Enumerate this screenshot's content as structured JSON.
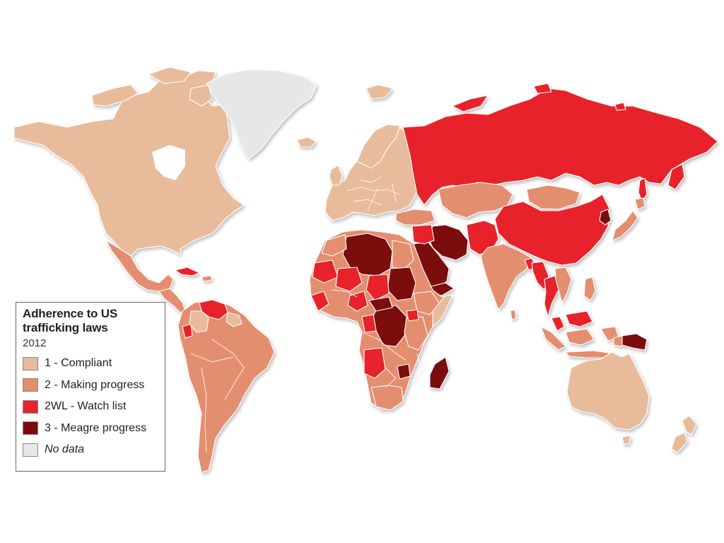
{
  "legend": {
    "title_line1": "Adherence to US",
    "title_line2": "trafficking laws",
    "year": "2012",
    "items": [
      {
        "label": "1 - Compliant",
        "color": "#e8bb9a"
      },
      {
        "label": "2 - Making progress",
        "color": "#e48e70"
      },
      {
        "label": "2WL - Watch list",
        "color": "#e8232b"
      },
      {
        "label": "3 - Meagre progress",
        "color": "#7c0a0a"
      },
      {
        "label": "No data",
        "color": "#e7e7e7"
      }
    ]
  },
  "colors": {
    "compliant": "#e8bb9a",
    "making_progress": "#e48e70",
    "watch_list": "#e8232b",
    "meagre_progress": "#7c0a0a",
    "no_data": "#e7e7e7"
  }
}
